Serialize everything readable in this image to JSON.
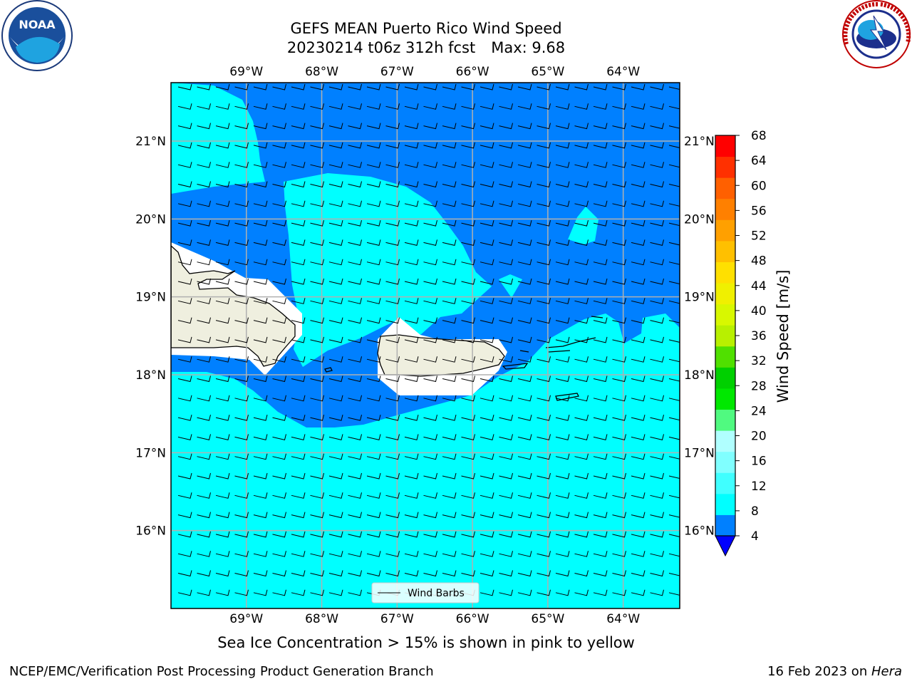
{
  "header": {
    "title_line1": "GEFS MEAN Puerto Rico Wind Speed",
    "run_info": "20230214 t06z 312h fcst",
    "max_info": "Max: 9.68"
  },
  "logos": {
    "left": {
      "name": "noaa-logo",
      "text": "NOAA",
      "ring": "NATIONAL OCEANIC AND ATMOSPHERIC ADMINISTRATION · U.S. DEPARTMENT OF COMMERCE"
    },
    "right": {
      "name": "nws-logo",
      "ring": "NATIONAL WEATHER SERVICE"
    }
  },
  "map": {
    "lon_labels": [
      "69°W",
      "68°W",
      "67°W",
      "66°W",
      "65°W",
      "64°W"
    ],
    "lat_labels": [
      "21°N",
      "20°N",
      "19°N",
      "18°N",
      "17°N",
      "16°N"
    ],
    "lon_values": [
      -69,
      -68,
      -67,
      -66,
      -65,
      -64
    ],
    "lat_values": [
      21,
      20,
      19,
      18,
      17,
      16
    ],
    "lon_range": [
      -70.0,
      -63.25
    ],
    "lat_range": [
      15.0,
      21.75
    ],
    "legend_label": "Wind Barbs",
    "colors": {
      "band_4_8": "#0080ff",
      "band_8_12": "#00ffff",
      "land": "#efefdf",
      "grid": "#b0b0b0"
    }
  },
  "colorbar": {
    "label": "Wind Speed [m/s]",
    "ticks": [
      "68",
      "64",
      "60",
      "56",
      "52",
      "48",
      "44",
      "40",
      "36",
      "32",
      "28",
      "24",
      "20",
      "16",
      "12",
      "8",
      "4"
    ],
    "colors": [
      "#0000ff",
      "#0080ff",
      "#00ffff",
      "#40ffff",
      "#80ffff",
      "#b0ffff",
      "#50fa80",
      "#00e800",
      "#00d000",
      "#50e000",
      "#b8f000",
      "#d8f800",
      "#f0f000",
      "#ffe000",
      "#ffc000",
      "#ffa000",
      "#ff8000",
      "#ff6000",
      "#ff3000",
      "#ff0000"
    ],
    "extend": "min"
  },
  "subtitle": "Sea Ice Concentration > 15% is shown in pink to yellow",
  "footer": {
    "left": "NCEP/EMC/Verification Post Processing Product Generation Branch",
    "right_prefix": "16 Feb 2023 on ",
    "right_host": "Hera"
  }
}
